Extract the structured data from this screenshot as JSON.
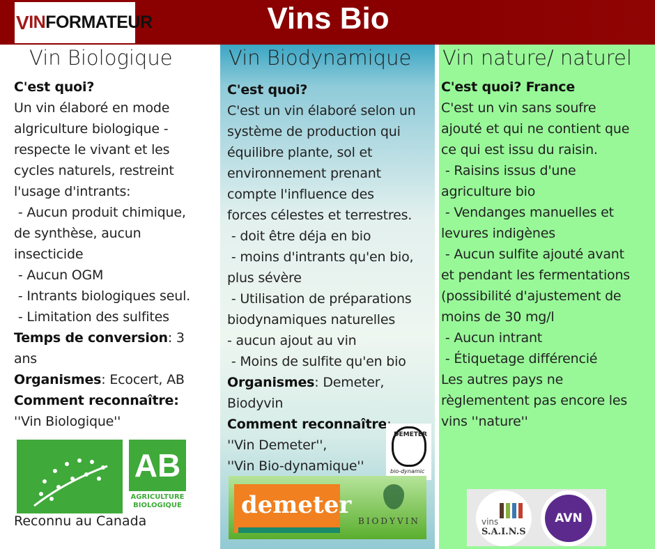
{
  "header": {
    "logo_text": "VINFORMATEUR",
    "title": "Vins Bio"
  },
  "columns": [
    {
      "title": "Vin Biologique",
      "lines": [
        [
          [
            "b",
            "C'est quoi?"
          ]
        ],
        [
          [
            "t",
            "Un vin élaboré en mode"
          ]
        ],
        [
          [
            "t",
            "algriculture biologique -"
          ]
        ],
        [
          [
            "t",
            "respecte le vivant et les"
          ]
        ],
        [
          [
            "t",
            "cycles naturels, restreint"
          ]
        ],
        [
          [
            "t",
            "l'usage d'intrants:"
          ]
        ],
        [
          [
            "t",
            " - Aucun produit chimique,"
          ]
        ],
        [
          [
            "t",
            "de synthèse, aucun"
          ]
        ],
        [
          [
            "t",
            "insecticide"
          ]
        ],
        [
          [
            "t",
            " - Aucun OGM"
          ]
        ],
        [
          [
            "t",
            " - Intrants biologiques seul."
          ]
        ],
        [
          [
            "t",
            " - Limitation des sulfites"
          ]
        ],
        [
          [
            "b",
            "Temps de conversion"
          ],
          [
            "t",
            ": 3"
          ]
        ],
        [
          [
            "t",
            "ans"
          ]
        ],
        [
          [
            "b",
            "Organismes"
          ],
          [
            "t",
            ": Ecocert, AB"
          ]
        ],
        [
          [
            "b",
            "Comment reconnaître:"
          ]
        ],
        [
          [
            "t",
            "''Vin Biologique''"
          ]
        ]
      ],
      "footer": "Reconnu au Canada",
      "logos": {
        "ab_letters": "AB",
        "ab_caption": "AGRICULTURE BIOLOGIQUE"
      }
    },
    {
      "title": "Vin Biodynamique",
      "lines": [
        [
          [
            "b",
            "C'est quoi?"
          ]
        ],
        [
          [
            "t",
            "C'est un vin élaboré selon un"
          ]
        ],
        [
          [
            "t",
            "système de production qui"
          ]
        ],
        [
          [
            "t",
            "équilibre plante, sol et"
          ]
        ],
        [
          [
            "t",
            "environnement prenant"
          ]
        ],
        [
          [
            "t",
            "compte l'influence des"
          ]
        ],
        [
          [
            "t",
            "forces célestes et terrestres."
          ]
        ],
        [
          [
            "t",
            " - doit être déja en bio"
          ]
        ],
        [
          [
            "t",
            " - moins d'intrants qu'en bio,"
          ]
        ],
        [
          [
            "t",
            "plus sévère"
          ]
        ],
        [
          [
            "t",
            " - Utilisation de préparations"
          ]
        ],
        [
          [
            "t",
            "biodynamiques naturelles"
          ]
        ],
        [
          [
            "t",
            "- aucun ajout au vin"
          ]
        ],
        [
          [
            "t",
            " - Moins de sulfite qu'en bio"
          ]
        ],
        [
          [
            "b",
            "Organismes"
          ],
          [
            "t",
            ": Demeter,"
          ]
        ],
        [
          [
            "t",
            "Biodyvin"
          ]
        ],
        [
          [
            "b",
            "Comment reconnaître"
          ],
          [
            "t",
            ":"
          ]
        ],
        [
          [
            "t",
            "''Vin Demeter'',"
          ]
        ],
        [
          [
            "t",
            "''Vin Bio-dynamique''"
          ]
        ]
      ],
      "logos": {
        "seal_text": "DEMETER",
        "seal_caption": "bio-dynamic",
        "demeter": "demeter",
        "biodyvin": "BIODYVIN"
      }
    },
    {
      "title": "Vin nature/ naturel",
      "lines": [
        [
          [
            "b",
            "C'est quoi? France"
          ]
        ],
        [
          [
            "t",
            "C'est un vin sans soufre"
          ]
        ],
        [
          [
            "t",
            "ajouté et qui ne contient que"
          ]
        ],
        [
          [
            "t",
            "ce qui est issu du raisin."
          ]
        ],
        [
          [
            "t",
            " - Raisins issus d'une"
          ]
        ],
        [
          [
            "t",
            "agriculture bio"
          ]
        ],
        [
          [
            "t",
            " - Vendanges manuelles et"
          ]
        ],
        [
          [
            "t",
            "levures indigènes"
          ]
        ],
        [
          [
            "t",
            " - Aucun sulfite ajouté avant"
          ]
        ],
        [
          [
            "t",
            "et pendant les fermentations"
          ]
        ],
        [
          [
            "t",
            "(possibilité d'ajustement de"
          ]
        ],
        [
          [
            "t",
            "moins de 30 mg/l"
          ]
        ],
        [
          [
            "t",
            " - Aucun intrant"
          ]
        ],
        [
          [
            "t",
            " - Étiquetage différencié"
          ]
        ],
        [
          [
            "t",
            "Les autres pays ne"
          ]
        ],
        [
          [
            "t",
            "règlementent pas encore les"
          ]
        ],
        [
          [
            "t",
            "vins ''nature''"
          ]
        ]
      ],
      "logos": {
        "sains_small": "vins",
        "sains": "S.A.I.N.S",
        "avn": "AVN"
      }
    }
  ]
}
